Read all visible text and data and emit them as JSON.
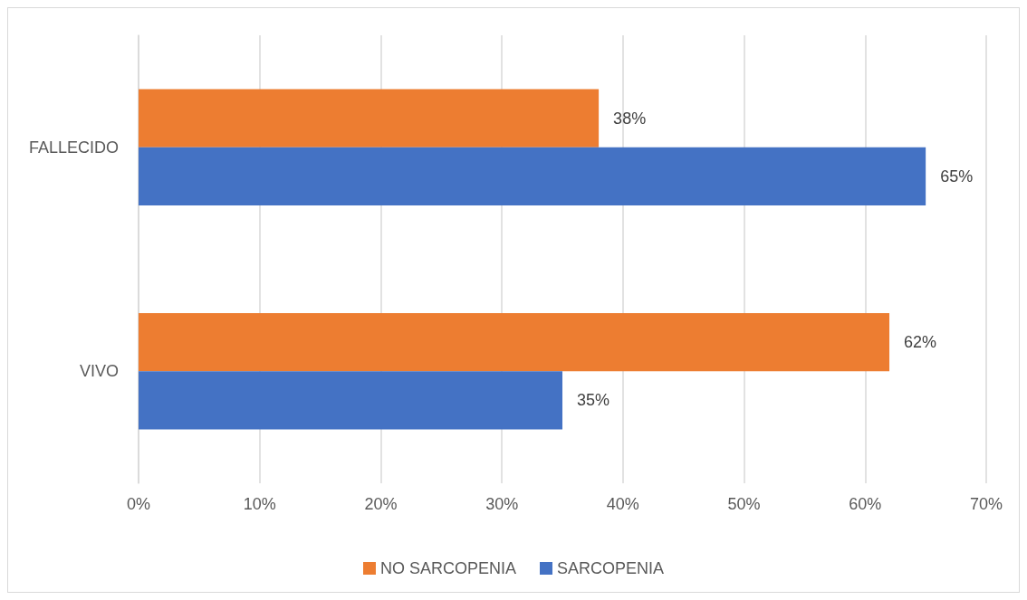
{
  "chart_data": {
    "type": "bar",
    "orientation": "horizontal",
    "categories": [
      "FALLECIDO",
      "VIVO"
    ],
    "series": [
      {
        "name": "NO SARCOPENIA",
        "color": "#ed7d31",
        "values": [
          38,
          62
        ],
        "value_labels": [
          "38%",
          "62%"
        ]
      },
      {
        "name": "SARCOPENIA",
        "color": "#4472c4",
        "values": [
          65,
          35
        ],
        "value_labels": [
          "65%",
          "35%"
        ]
      }
    ],
    "xlim": [
      0,
      70
    ],
    "xticks": [
      {
        "value": 0,
        "label": "0%"
      },
      {
        "value": 10,
        "label": "10%"
      },
      {
        "value": 20,
        "label": "20%"
      },
      {
        "value": 30,
        "label": "30%"
      },
      {
        "value": 40,
        "label": "40%"
      },
      {
        "value": 50,
        "label": "50%"
      },
      {
        "value": 60,
        "label": "60%"
      },
      {
        "value": 70,
        "label": "70%"
      }
    ],
    "grid": "x",
    "legend": "bottom"
  }
}
